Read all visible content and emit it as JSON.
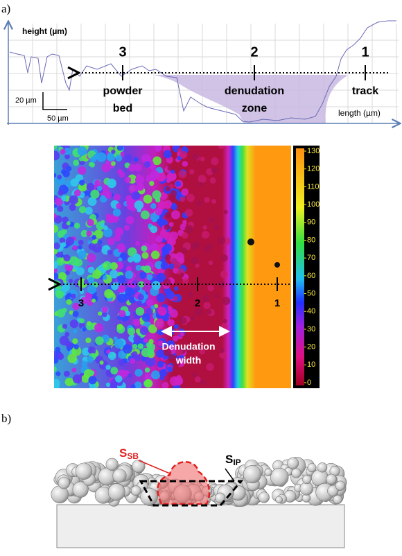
{
  "panel_a": {
    "label": "a)",
    "y_axis_label": "height (µm)",
    "x_axis_label": "length (µm)",
    "scale_y": "20 µm",
    "scale_x": "50 µm",
    "markers": [
      {
        "number": "3",
        "label": [
          "powder",
          "bed"
        ]
      },
      {
        "number": "2",
        "label": [
          "denudation",
          "zone"
        ]
      },
      {
        "number": "1",
        "label": [
          "track"
        ]
      }
    ]
  },
  "image": {
    "markers": [
      "3",
      "2",
      "1"
    ],
    "annotation": [
      "Denudation",
      "width"
    ],
    "colorbar_ticks": [
      0,
      10,
      20,
      30,
      40,
      50,
      60,
      70,
      80,
      90,
      100,
      110,
      120,
      130
    ]
  },
  "panel_b": {
    "label": "b)",
    "s_sb": {
      "main": "S",
      "sub": "SB"
    },
    "s_ip": {
      "main": "S",
      "sub": "IP"
    }
  }
}
